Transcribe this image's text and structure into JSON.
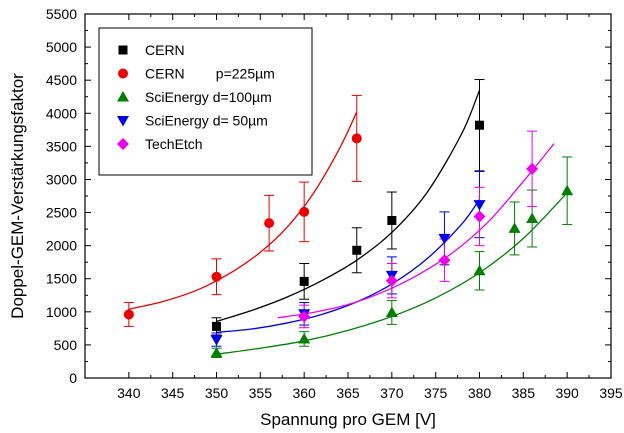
{
  "chart_data": {
    "type": "scatter",
    "xlabel": "Spannung pro GEM [V]",
    "ylabel": "Doppel-GEM-Verstärkungsfaktor",
    "xlim": [
      335,
      395
    ],
    "ylim": [
      0,
      5500
    ],
    "xticks": [
      340,
      345,
      350,
      355,
      360,
      365,
      370,
      375,
      380,
      385,
      390,
      395
    ],
    "yticks": [
      0,
      500,
      1000,
      1500,
      2000,
      2500,
      3000,
      3500,
      4000,
      4500,
      5000,
      5500
    ],
    "grid": false,
    "legend_position": "top-left",
    "series": [
      {
        "name": "CERN",
        "marker": "square",
        "color": "#000000",
        "points": [
          {
            "x": 350,
            "y": 780,
            "err": 130
          },
          {
            "x": 360,
            "y": 1460,
            "err": 270
          },
          {
            "x": 366,
            "y": 1930,
            "err": 340
          },
          {
            "x": 370,
            "y": 2380,
            "err": 430
          },
          {
            "x": 380,
            "y": 3820,
            "err": 690
          }
        ],
        "fit": {
          "x": [
            350,
            354,
            358,
            362,
            366,
            370,
            374,
            378,
            380
          ],
          "y": [
            855,
            1020,
            1220,
            1470,
            1780,
            2200,
            2800,
            3700,
            4350
          ]
        }
      },
      {
        "name": "CERN        p=225µm",
        "marker": "circle",
        "color": "#ee0000",
        "points": [
          {
            "x": 340,
            "y": 960,
            "err": 180
          },
          {
            "x": 350,
            "y": 1530,
            "err": 270
          },
          {
            "x": 356,
            "y": 2340,
            "err": 420
          },
          {
            "x": 360,
            "y": 2510,
            "err": 450
          },
          {
            "x": 366,
            "y": 3620,
            "err": 650
          }
        ],
        "fit": {
          "x": [
            340,
            344,
            348,
            352,
            355,
            358,
            361,
            364,
            366
          ],
          "y": [
            1040,
            1160,
            1340,
            1620,
            1900,
            2270,
            2780,
            3460,
            4020
          ]
        }
      },
      {
        "name": "SciEnergy d=100µm",
        "marker": "triangle-up",
        "color": "#008000",
        "points": [
          {
            "x": 350,
            "y": 380,
            "err": 70
          },
          {
            "x": 360,
            "y": 590,
            "err": 110
          },
          {
            "x": 370,
            "y": 990,
            "err": 180
          },
          {
            "x": 380,
            "y": 1620,
            "err": 290
          },
          {
            "x": 384,
            "y": 2260,
            "err": 400
          },
          {
            "x": 386,
            "y": 2410,
            "err": 430
          },
          {
            "x": 390,
            "y": 2830,
            "err": 510
          }
        ],
        "fit": {
          "x": [
            350,
            355,
            360,
            365,
            370,
            375,
            380,
            385,
            390
          ],
          "y": [
            360,
            450,
            560,
            720,
            930,
            1210,
            1590,
            2110,
            2800
          ]
        }
      },
      {
        "name": "SciEnergy d= 50µm",
        "marker": "triangle-down",
        "color": "#0000ee",
        "points": [
          {
            "x": 350,
            "y": 580,
            "err": 100
          },
          {
            "x": 360,
            "y": 970,
            "err": 170
          },
          {
            "x": 370,
            "y": 1550,
            "err": 280
          },
          {
            "x": 376,
            "y": 2110,
            "err": 400
          },
          {
            "x": 380,
            "y": 2620,
            "err": 500
          }
        ],
        "fit": {
          "x": [
            350,
            354,
            358,
            362,
            366,
            370,
            374,
            378,
            380
          ],
          "y": [
            690,
            740,
            830,
            960,
            1150,
            1420,
            1800,
            2330,
            2700
          ]
        }
      },
      {
        "name": "TechEtch",
        "marker": "diamond",
        "color": "#ee00ee",
        "points": [
          {
            "x": 360,
            "y": 930,
            "err": 170
          },
          {
            "x": 370,
            "y": 1470,
            "err": 260
          },
          {
            "x": 376,
            "y": 1780,
            "err": 320
          },
          {
            "x": 380,
            "y": 2440,
            "err": 440
          },
          {
            "x": 386,
            "y": 3160,
            "err": 570
          }
        ],
        "fit": {
          "x": [
            357,
            361,
            365,
            369,
            373,
            377,
            381,
            385,
            388.5
          ],
          "y": [
            910,
            990,
            1110,
            1300,
            1560,
            1900,
            2360,
            2970,
            3540
          ]
        }
      }
    ]
  }
}
